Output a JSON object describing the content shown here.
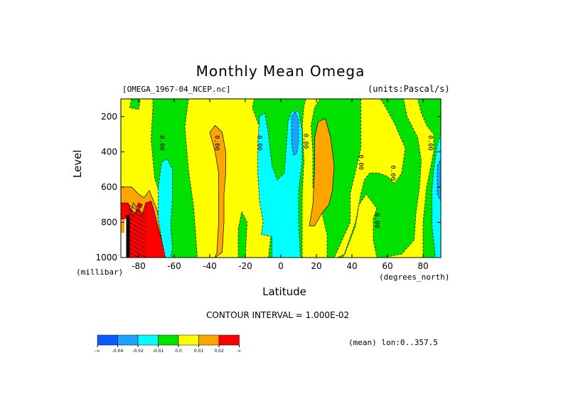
{
  "chart_data": {
    "type": "heatmap",
    "title": "Monthly Mean Omega",
    "dataset_label": "[OMEGA_1967-04_NCEP.nc]",
    "units_label": "(units:Pascal/s)",
    "xlabel": "Latitude",
    "x_unit_label": "(degrees_north)",
    "ylabel": "Level",
    "y_unit_label": "(millibar)",
    "xlim": [
      -90,
      90
    ],
    "ylim": [
      1000,
      100
    ],
    "x_ticks": [
      {
        "value": -80,
        "label": "-80"
      },
      {
        "value": -60,
        "label": "-60"
      },
      {
        "value": -40,
        "label": "-40"
      },
      {
        "value": -20,
        "label": "-20"
      },
      {
        "value": 0,
        "label": "0"
      },
      {
        "value": 20,
        "label": "20"
      },
      {
        "value": 40,
        "label": "40"
      },
      {
        "value": 60,
        "label": "60"
      },
      {
        "value": 80,
        "label": "80"
      }
    ],
    "y_ticks": [
      {
        "value": 200,
        "label": "200"
      },
      {
        "value": 400,
        "label": "400"
      },
      {
        "value": 600,
        "label": "600"
      },
      {
        "value": 800,
        "label": "800"
      },
      {
        "value": 1000,
        "label": "1000"
      }
    ],
    "contour_interval_text": "CONTOUR INTERVAL = 1.000E-02",
    "mean_text": "(mean) lon:0..357.5",
    "colorbar": [
      {
        "label": "-∞",
        "color": "#0a5aff"
      },
      {
        "label": "-0.04",
        "color": "#19a5ff"
      },
      {
        "label": "-0.02",
        "color": "#00ffff"
      },
      {
        "label": "-0.01",
        "color": "#00e100"
      },
      {
        "label": "0.0",
        "color": "#ffff00"
      },
      {
        "label": "0.01",
        "color": "#ffa500"
      },
      {
        "label": "0.02",
        "color": "#ff0000"
      },
      {
        "label": "∞",
        "color": ""
      }
    ],
    "contour_labels": [
      {
        "text": "0.00",
        "lat": -68,
        "lev": 350
      },
      {
        "text": "0.00",
        "lat": -37,
        "lev": 350
      },
      {
        "text": "0.00",
        "lat": -13,
        "lev": 350
      },
      {
        "text": "0.00",
        "lat": 13,
        "lev": 340
      },
      {
        "text": "0.00",
        "lat": 44,
        "lev": 460
      },
      {
        "text": "0.00",
        "lat": 62,
        "lev": 520
      },
      {
        "text": "0.00",
        "lat": 83,
        "lev": 350
      },
      {
        "text": "0.00",
        "lat": 53,
        "lev": 790
      }
    ],
    "regions": [
      {
        "value": 0.0,
        "color": "#ffff00",
        "poly": [
          [
            -90,
            1000
          ],
          [
            90,
            1000
          ],
          [
            90,
            100
          ],
          [
            -90,
            100
          ]
        ]
      },
      {
        "value": -0.01,
        "color": "#00e100",
        "poly": [
          [
            -84,
            100
          ],
          [
            -79,
            100
          ],
          [
            -80,
            160
          ],
          [
            -85,
            150
          ]
        ]
      },
      {
        "value": -0.01,
        "color": "#00e100",
        "poly": [
          [
            -72,
            100
          ],
          [
            -52,
            100
          ],
          [
            -54,
            260
          ],
          [
            -52,
            500
          ],
          [
            -49,
            720
          ],
          [
            -47,
            1000
          ],
          [
            -64,
            1000
          ],
          [
            -66,
            700
          ],
          [
            -71,
            550
          ],
          [
            -73,
            330
          ],
          [
            -72,
            150
          ]
        ]
      },
      {
        "value": -0.01,
        "color": "#00e100",
        "poly": [
          [
            -7,
            1000
          ],
          [
            -5,
            820
          ],
          [
            -6,
            600
          ],
          [
            -8,
            420
          ],
          [
            -12,
            260
          ],
          [
            -16,
            150
          ],
          [
            -15,
            100
          ],
          [
            14,
            100
          ],
          [
            13,
            140
          ],
          [
            12,
            250
          ],
          [
            13,
            450
          ],
          [
            12,
            650
          ],
          [
            12,
            1000
          ]
        ]
      },
      {
        "value": -0.01,
        "color": "#00e100",
        "poly": [
          [
            -24,
            840
          ],
          [
            -22,
            740
          ],
          [
            -19,
            800
          ],
          [
            -20,
            1000
          ],
          [
            -24,
            1000
          ]
        ]
      },
      {
        "value": -0.01,
        "color": "#00e100",
        "poly": [
          [
            25,
            100
          ],
          [
            45,
            100
          ],
          [
            45,
            380
          ],
          [
            39,
            640
          ],
          [
            39,
            800
          ],
          [
            30,
            1000
          ],
          [
            35,
            1000
          ],
          [
            42,
            800
          ],
          [
            45,
            640
          ],
          [
            47,
            560
          ],
          [
            50,
            520
          ],
          [
            55,
            520
          ],
          [
            60,
            540
          ],
          [
            64,
            580
          ],
          [
            68,
            520
          ],
          [
            70,
            380
          ],
          [
            64,
            240
          ],
          [
            58,
            130
          ],
          [
            56,
            100
          ],
          [
            90,
            100
          ],
          [
            90,
            1000
          ],
          [
            80,
            1000
          ],
          [
            80,
            800
          ],
          [
            82,
            600
          ],
          [
            86,
            400
          ],
          [
            86,
            300
          ],
          [
            82,
            250
          ],
          [
            79,
            180
          ],
          [
            77,
            100
          ],
          [
            69,
            100
          ],
          [
            71,
            200
          ],
          [
            77,
            320
          ],
          [
            79,
            450
          ],
          [
            78,
            600
          ],
          [
            76,
            750
          ],
          [
            75,
            900
          ],
          [
            68,
            980
          ],
          [
            58,
            1000
          ],
          [
            54,
            1000
          ],
          [
            52,
            900
          ],
          [
            52,
            780
          ],
          [
            54,
            720
          ],
          [
            48,
            640
          ],
          [
            44,
            700
          ],
          [
            42,
            820
          ],
          [
            36,
            980
          ],
          [
            32,
            1000
          ],
          [
            26,
            1000
          ],
          [
            26,
            870
          ],
          [
            22,
            700
          ],
          [
            18,
            600
          ],
          [
            18,
            400
          ],
          [
            17,
            250
          ],
          [
            19,
            150
          ],
          [
            22,
            100
          ]
        ]
      },
      {
        "value": 0.01,
        "color": "#ffa500",
        "poly": [
          [
            -90,
            600
          ],
          [
            -84,
            600
          ],
          [
            -80,
            640
          ],
          [
            -77,
            660
          ],
          [
            -74,
            620
          ],
          [
            -72,
            670
          ],
          [
            -70,
            720
          ],
          [
            -68,
            790
          ],
          [
            -64,
            1000
          ],
          [
            -90,
            1000
          ]
        ]
      },
      {
        "value": 0.01,
        "color": "#ffa500",
        "poly": [
          [
            -37,
            1000
          ],
          [
            -36,
            970
          ],
          [
            -35,
            800
          ],
          [
            -35,
            640
          ],
          [
            -35,
            520
          ],
          [
            -37,
            400
          ],
          [
            -40,
            290
          ],
          [
            -37,
            250
          ],
          [
            -33,
            290
          ],
          [
            -31,
            400
          ],
          [
            -31,
            520
          ],
          [
            -32,
            640
          ],
          [
            -32,
            800
          ],
          [
            -33,
            970
          ]
        ]
      },
      {
        "value": 0.01,
        "color": "#ffa500",
        "poly": [
          [
            16,
            820
          ],
          [
            18,
            700
          ],
          [
            19,
            500
          ],
          [
            19,
            320
          ],
          [
            21,
            230
          ],
          [
            25,
            210
          ],
          [
            28,
            320
          ],
          [
            30,
            480
          ],
          [
            29,
            620
          ],
          [
            27,
            700
          ],
          [
            23,
            750
          ],
          [
            19,
            820
          ]
        ]
      },
      {
        "value": 0.01,
        "color": "#ffa500",
        "poly": [
          [
            -83,
            690
          ],
          [
            -81,
            720
          ],
          [
            -82,
            760
          ],
          [
            -84,
            730
          ]
        ]
      },
      {
        "value": 0.02,
        "color": "#ff0000",
        "poly": [
          [
            -90,
            690
          ],
          [
            -86,
            690
          ],
          [
            -83,
            760
          ],
          [
            -80,
            720
          ],
          [
            -78,
            760
          ],
          [
            -76,
            690
          ],
          [
            -73,
            680
          ],
          [
            -71,
            750
          ],
          [
            -69,
            830
          ],
          [
            -67,
            900
          ],
          [
            -65,
            1000
          ],
          [
            -86,
            1000
          ],
          [
            -88,
            780
          ],
          [
            -90,
            780
          ]
        ]
      },
      {
        "value": 0.02,
        "color": "#ff0000",
        "poly": [
          [
            -80,
            690
          ],
          [
            -78,
            700
          ],
          [
            -79,
            720
          ],
          [
            -81,
            710
          ]
        ]
      },
      {
        "value": -0.02,
        "color": "#00ffff",
        "poly": [
          [
            -65,
            1000
          ],
          [
            -67,
            900
          ],
          [
            -69,
            780
          ],
          [
            -69,
            600
          ],
          [
            -67,
            460
          ],
          [
            -64,
            440
          ],
          [
            -61,
            500
          ],
          [
            -61,
            660
          ],
          [
            -62,
            820
          ],
          [
            -61,
            950
          ],
          [
            -62,
            1000
          ]
        ]
      },
      {
        "value": -0.02,
        "color": "#00ffff",
        "poly": [
          [
            -11,
            870
          ],
          [
            -10,
            800
          ],
          [
            -12,
            680
          ],
          [
            -13,
            520
          ],
          [
            -13,
            350
          ],
          [
            -12,
            200
          ],
          [
            -9,
            180
          ],
          [
            -7,
            300
          ],
          [
            -5,
            480
          ],
          [
            -2,
            560
          ],
          [
            2,
            520
          ],
          [
            3,
            380
          ],
          [
            4,
            230
          ],
          [
            6,
            170
          ],
          [
            10,
            170
          ],
          [
            12,
            280
          ],
          [
            12,
            450
          ],
          [
            10,
            620
          ],
          [
            10,
            800
          ],
          [
            11,
            1000
          ],
          [
            -5,
            1000
          ],
          [
            -5,
            880
          ]
        ]
      },
      {
        "value": -0.02,
        "color": "#00ffff",
        "poly": [
          [
            90,
            1000
          ],
          [
            87,
            1000
          ],
          [
            85,
            820
          ],
          [
            85,
            620
          ],
          [
            86,
            500
          ],
          [
            88,
            360
          ],
          [
            90,
            300
          ]
        ]
      },
      {
        "value": -0.04,
        "color": "#19a5ff",
        "poly": [
          [
            6,
            200
          ],
          [
            8,
            170
          ],
          [
            10,
            220
          ],
          [
            10,
            340
          ],
          [
            9,
            410
          ],
          [
            7,
            420
          ],
          [
            6,
            350
          ]
        ]
      },
      {
        "value": -0.04,
        "color": "#19a5ff",
        "poly": [
          [
            88,
            480
          ],
          [
            90,
            440
          ],
          [
            90,
            680
          ],
          [
            88,
            640
          ]
        ]
      }
    ],
    "white_block": [
      [
        -90,
        860
      ],
      [
        -88,
        860
      ],
      [
        -88,
        780
      ],
      [
        -86,
        780
      ],
      [
        -86,
        1000
      ],
      [
        -90,
        1000
      ]
    ],
    "black_hatch": [
      [
        -87,
        760
      ],
      [
        -85,
        760
      ],
      [
        -85,
        1000
      ],
      [
        -87,
        1000
      ]
    ]
  }
}
